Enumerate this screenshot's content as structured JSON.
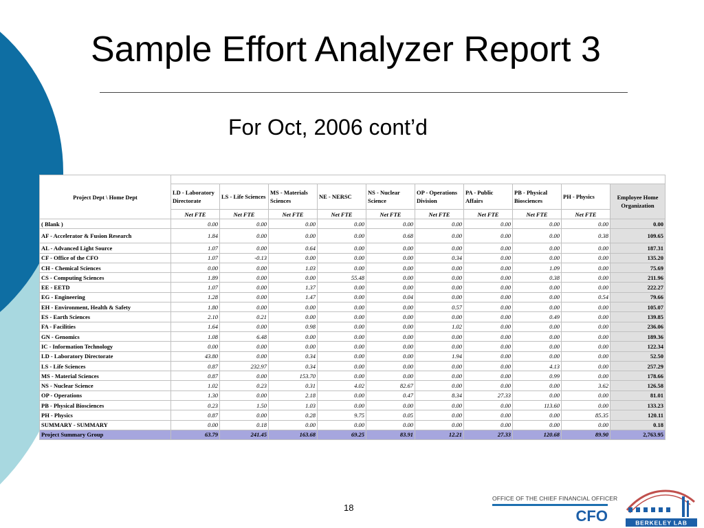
{
  "slide": {
    "title": "Sample Effort Analyzer Report 3",
    "subtitle": "For Oct, 2006 cont’d",
    "page_number": "18"
  },
  "footer": {
    "office": "OFFICE OF THE CHIEF FINANCIAL OFFICER",
    "cfo": "CFO",
    "lab": "BERKELEY LAB"
  },
  "report": {
    "corner_label": "Project Dept \\ Home Dept",
    "departments": [
      "LD - Laboratory Directorate",
      "LS - Life Sciences",
      "MS - Materials Sciences",
      "NE - NERSC",
      "NS - Nuclear Science",
      "OP - Operations Division",
      "PA - Public Affairs",
      "PB - Physical Biosciences",
      "PH - Physics"
    ],
    "org_header": "Employee Home Organization",
    "measure_label": "Net FTE",
    "rows": [
      {
        "label": "( Blank )",
        "values": [
          "0.00",
          "0.00",
          "0.00",
          "0.00",
          "0.00",
          "0.00",
          "0.00",
          "0.00",
          "0.00"
        ],
        "total": "0.00"
      },
      {
        "label": "AF - Accelerator & Fusion Research",
        "values": [
          "1.84",
          "0.00",
          "0.00",
          "0.00",
          "0.68",
          "0.00",
          "0.00",
          "0.00",
          "0.38"
        ],
        "total": "109.65"
      },
      {
        "label": "AL - Advanced Light Source",
        "values": [
          "1.07",
          "0.00",
          "0.64",
          "0.00",
          "0.00",
          "0.00",
          "0.00",
          "0.00",
          "0.00"
        ],
        "total": "187.31"
      },
      {
        "label": "CF - Office of the CFO",
        "values": [
          "1.07",
          "-0.13",
          "0.00",
          "0.00",
          "0.00",
          "0.34",
          "0.00",
          "0.00",
          "0.00"
        ],
        "total": "135.20"
      },
      {
        "label": "CH - Chemical Sciences",
        "values": [
          "0.00",
          "0.00",
          "1.03",
          "0.00",
          "0.00",
          "0.00",
          "0.00",
          "1.09",
          "0.00"
        ],
        "total": "75.69"
      },
      {
        "label": "CS - Computing Sciences",
        "values": [
          "1.89",
          "0.00",
          "0.00",
          "55.48",
          "0.00",
          "0.00",
          "0.00",
          "0.38",
          "0.00"
        ],
        "total": "211.96"
      },
      {
        "label": "EE - EETD",
        "values": [
          "1.07",
          "0.00",
          "1.37",
          "0.00",
          "0.00",
          "0.00",
          "0.00",
          "0.00",
          "0.00"
        ],
        "total": "222.27"
      },
      {
        "label": "EG - Engineering",
        "values": [
          "1.28",
          "0.00",
          "1.47",
          "0.00",
          "0.04",
          "0.00",
          "0.00",
          "0.00",
          "0.54"
        ],
        "total": "79.66"
      },
      {
        "label": "EH - Environment, Health & Safety",
        "values": [
          "1.80",
          "0.00",
          "0.00",
          "0.00",
          "0.00",
          "0.57",
          "0.00",
          "0.00",
          "0.00"
        ],
        "total": "105.07"
      },
      {
        "label": "ES - Earth Sciences",
        "values": [
          "2.10",
          "0.21",
          "0.00",
          "0.00",
          "0.00",
          "0.00",
          "0.00",
          "0.49",
          "0.00"
        ],
        "total": "139.85"
      },
      {
        "label": "FA - Facilities",
        "values": [
          "1.64",
          "0.00",
          "0.98",
          "0.00",
          "0.00",
          "1.02",
          "0.00",
          "0.00",
          "0.00"
        ],
        "total": "236.06"
      },
      {
        "label": "GN - Genomics",
        "values": [
          "1.08",
          "6.48",
          "0.00",
          "0.00",
          "0.00",
          "0.00",
          "0.00",
          "0.00",
          "0.00"
        ],
        "total": "189.36"
      },
      {
        "label": "IC - Information Technology",
        "values": [
          "0.00",
          "0.00",
          "0.00",
          "0.00",
          "0.00",
          "0.00",
          "0.00",
          "0.00",
          "0.00"
        ],
        "total": "122.34"
      },
      {
        "label": "LD - Laboratory Directorate",
        "values": [
          "43.80",
          "0.00",
          "0.34",
          "0.00",
          "0.00",
          "1.94",
          "0.00",
          "0.00",
          "0.00"
        ],
        "total": "52.50"
      },
      {
        "label": "LS - Life Sciences",
        "values": [
          "0.87",
          "232.97",
          "0.34",
          "0.00",
          "0.00",
          "0.00",
          "0.00",
          "4.13",
          "0.00"
        ],
        "total": "257.29"
      },
      {
        "label": "MS - Material Sciences",
        "values": [
          "0.87",
          "0.00",
          "153.70",
          "0.00",
          "0.00",
          "0.00",
          "0.00",
          "0.99",
          "0.00"
        ],
        "total": "178.66"
      },
      {
        "label": "NS - Nuclear Science",
        "values": [
          "1.02",
          "0.23",
          "0.31",
          "4.02",
          "82.67",
          "0.00",
          "0.00",
          "0.00",
          "3.62"
        ],
        "total": "126.58"
      },
      {
        "label": "OP - Operations",
        "values": [
          "1.30",
          "0.00",
          "2.18",
          "0.00",
          "0.47",
          "8.34",
          "27.33",
          "0.00",
          "0.00"
        ],
        "total": "81.01"
      },
      {
        "label": "PB - Physical Biosciences",
        "values": [
          "0.23",
          "1.50",
          "1.03",
          "0.00",
          "0.00",
          "0.00",
          "0.00",
          "113.60",
          "0.00"
        ],
        "total": "133.23"
      },
      {
        "label": "PH - Physics",
        "values": [
          "0.87",
          "0.00",
          "0.28",
          "9.75",
          "0.05",
          "0.00",
          "0.00",
          "0.00",
          "85.35"
        ],
        "total": "120.11"
      },
      {
        "label": "SUMMARY - SUMMARY",
        "values": [
          "0.00",
          "0.18",
          "0.00",
          "0.00",
          "0.00",
          "0.00",
          "0.00",
          "0.00",
          "0.00"
        ],
        "total": "0.18"
      }
    ],
    "summary": {
      "label": "Project Summary Group",
      "values": [
        "63.79",
        "241.45",
        "163.68",
        "69.25",
        "83.91",
        "12.21",
        "27.33",
        "120.68",
        "89.90"
      ],
      "total": "2,763.95"
    }
  },
  "colors": {
    "title_text": "#000000",
    "decor_dark_blue": "#0e6ea3",
    "decor_light_blue": "#a8d8e0",
    "summary_row": "#a6a6de",
    "total_column": "#e0e0e0",
    "cfo_blue": "#1c5fa8",
    "logo_red": "#c0504d"
  }
}
